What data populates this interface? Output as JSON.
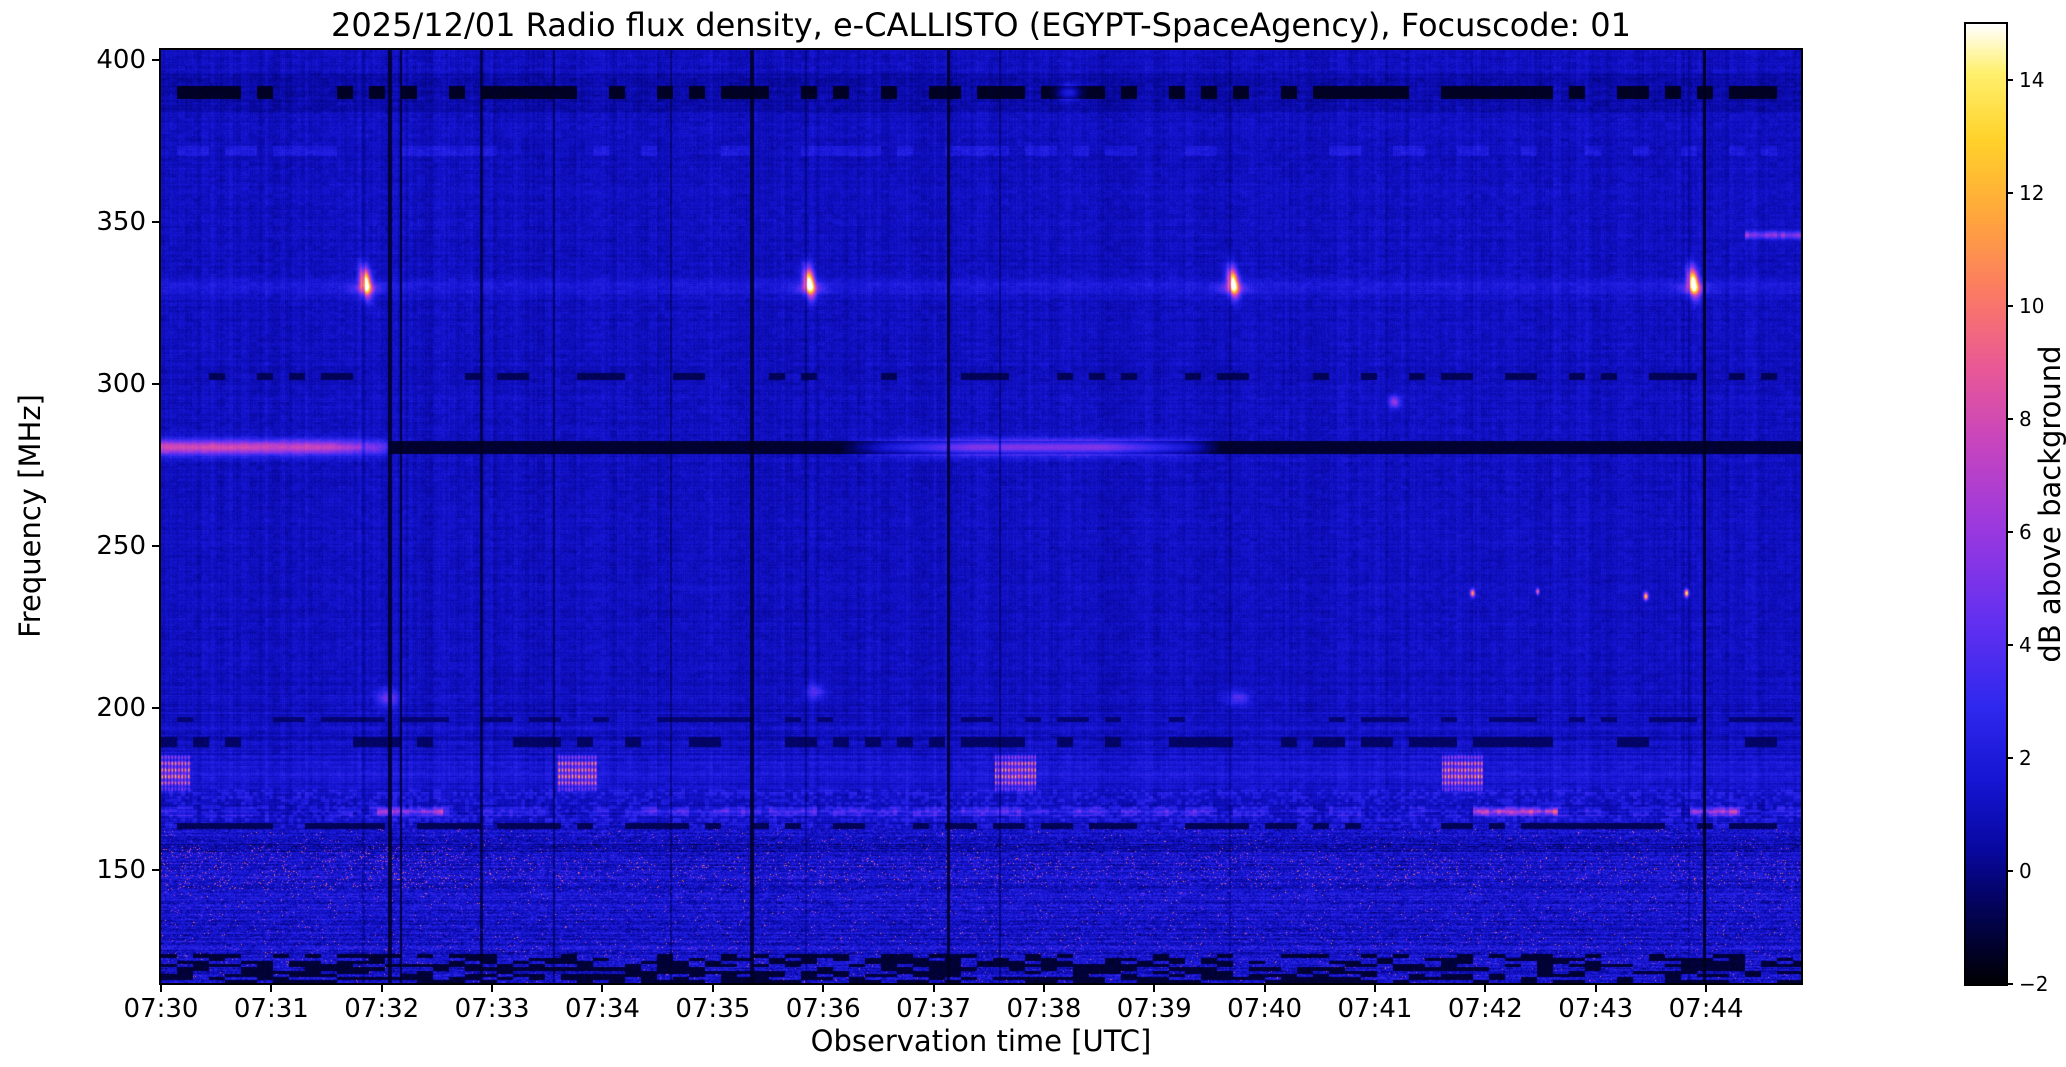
{
  "chart_data": {
    "type": "heatmap",
    "title": "2025/12/01  Radio flux density, e-CALLISTO (EGYPT-SpaceAgency), Focuscode: 01",
    "date": "2025/12/01",
    "station": "EGYPT-SpaceAgency",
    "focuscode": "01",
    "xlabel": "Observation time [UTC]",
    "ylabel": "Frequency [MHz]",
    "colorbar_label": "dB above background",
    "x_tick_labels": [
      "07:30",
      "07:31",
      "07:32",
      "07:33",
      "07:34",
      "07:35",
      "07:36",
      "07:37",
      "07:38",
      "07:39",
      "07:40",
      "07:41",
      "07:42",
      "07:43",
      "07:44"
    ],
    "x_range_minutes_after_0730": [
      0,
      14.86
    ],
    "y_tick_values": [
      400,
      350,
      300,
      250,
      200,
      150
    ],
    "y_range_mhz": [
      115,
      403
    ],
    "colorbar_tick_values": [
      14,
      12,
      10,
      8,
      6,
      4,
      2,
      0,
      -2
    ],
    "colorbar_range_db": [
      -2,
      15
    ],
    "background": {
      "typical_db": 1.0,
      "noisy_band_below_mhz": 163
    },
    "colormap_stops": [
      {
        "u": 0.0,
        "c": "#000004"
      },
      {
        "u": 0.08,
        "c": "#03035a"
      },
      {
        "u": 0.14,
        "c": "#0808a0"
      },
      {
        "u": 0.21,
        "c": "#1515d2"
      },
      {
        "u": 0.29,
        "c": "#3028ee"
      },
      {
        "u": 0.38,
        "c": "#6430f0"
      },
      {
        "u": 0.47,
        "c": "#9838e0"
      },
      {
        "u": 0.56,
        "c": "#c544c0"
      },
      {
        "u": 0.64,
        "c": "#e85898"
      },
      {
        "u": 0.72,
        "c": "#fb7a64"
      },
      {
        "u": 0.8,
        "c": "#ffa63c"
      },
      {
        "u": 0.88,
        "c": "#ffd22a"
      },
      {
        "u": 0.95,
        "c": "#fff06e"
      },
      {
        "u": 1.0,
        "c": "#ffffff"
      }
    ],
    "features": [
      {
        "type": "brightrow",
        "f": 330,
        "hw": 2.6,
        "amt": 0.9
      },
      {
        "type": "brightrow",
        "f": 180,
        "hw": 4.5,
        "amt": 0.7
      },
      {
        "type": "dashbright",
        "f": 372,
        "hw": 1.6,
        "amt": 0.9,
        "duty": 0.45
      },
      {
        "type": "dashbright",
        "f": 168,
        "hw": 1.4,
        "amt": 1.0,
        "duty": 0.5
      },
      {
        "type": "dashrow",
        "f": 390,
        "hw": 1.9,
        "depth": -1.7,
        "duty": 0.55
      },
      {
        "type": "dashrow",
        "f": 302.5,
        "hw": 1.1,
        "depth": -0.9,
        "duty": 0.38
      },
      {
        "type": "dashrow",
        "f": 189.5,
        "hw": 1.6,
        "depth": -0.7,
        "duty": 0.42
      },
      {
        "type": "dashrow",
        "f": 196.5,
        "hw": 0.9,
        "depth": -0.5,
        "duty": 0.45
      },
      {
        "type": "dashrow",
        "f": 163.5,
        "hw": 0.9,
        "depth": -0.9,
        "duty": 0.6
      },
      {
        "type": "darkline",
        "f": 280.5,
        "hw": 2.1,
        "t0": 2.05,
        "t1": 14.86,
        "depth": -1.55
      },
      {
        "type": "hline",
        "f": 280.5,
        "sigma": 1.6,
        "pts": [
          [
            0,
            7
          ],
          [
            1.5,
            6.3
          ],
          [
            2.02,
            3.2
          ],
          [
            2.1,
            0
          ]
        ]
      },
      {
        "type": "hline",
        "f": 280.5,
        "sigma": 1.6,
        "pts": [
          [
            6.15,
            0
          ],
          [
            6.55,
            3
          ],
          [
            7.35,
            6.6
          ],
          [
            8.55,
            6.6
          ],
          [
            9.3,
            3
          ],
          [
            9.6,
            0
          ]
        ]
      },
      {
        "type": "burst",
        "t": 1.85,
        "f": 331.5,
        "st": 0.05,
        "sf": 4.2,
        "slope": -25,
        "peak": 14.5,
        "fspan": [
          320,
          343
        ]
      },
      {
        "type": "burst",
        "t": 5.87,
        "f": 331.5,
        "st": 0.05,
        "sf": 4.2,
        "slope": -25,
        "peak": 14.5,
        "fspan": [
          320,
          343
        ]
      },
      {
        "type": "burst",
        "t": 9.71,
        "f": 331.5,
        "st": 0.05,
        "sf": 4.2,
        "slope": -25,
        "peak": 14.0,
        "fspan": [
          320,
          343
        ]
      },
      {
        "type": "burst",
        "t": 13.88,
        "f": 331.5,
        "st": 0.05,
        "sf": 4.2,
        "slope": -25,
        "peak": 14.5,
        "fspan": [
          320,
          343
        ]
      },
      {
        "type": "comb",
        "t0": 0,
        "t1": 0.27,
        "f0": 173.5,
        "f1": 186.5,
        "peak": 12
      },
      {
        "type": "comb",
        "t0": 3.58,
        "t1": 3.95,
        "f0": 173.5,
        "f1": 186.5,
        "peak": 12
      },
      {
        "type": "comb",
        "t0": 7.55,
        "t1": 7.92,
        "f0": 173.5,
        "f1": 186.5,
        "peak": 12
      },
      {
        "type": "comb",
        "t0": 11.6,
        "t1": 11.97,
        "f0": 173.5,
        "f1": 186.5,
        "peak": 12
      },
      {
        "type": "rowseg",
        "f": 168,
        "sigma": 1.1,
        "t0": 1.95,
        "t1": 2.55,
        "peak": 5,
        "dash": true
      },
      {
        "type": "rowseg",
        "f": 168,
        "sigma": 1.1,
        "t0": 4.2,
        "t1": 9.5,
        "peak": 1.6,
        "dash": true
      },
      {
        "type": "rowseg",
        "f": 168,
        "sigma": 1.1,
        "t0": 11.88,
        "t1": 12.65,
        "peak": 6.5,
        "dash": true
      },
      {
        "type": "rowseg",
        "f": 168,
        "sigma": 1.1,
        "t0": 13.85,
        "t1": 14.3,
        "peak": 5.5,
        "dash": true
      },
      {
        "type": "rowseg",
        "f": 346,
        "sigma": 1.2,
        "t0": 14.35,
        "t1": 14.86,
        "peak": 5,
        "dash": true
      },
      {
        "type": "blob",
        "t": 11.17,
        "f": 294.5,
        "st": 0.05,
        "sf": 1.8,
        "peak": 5
      },
      {
        "type": "blob",
        "t": 2.05,
        "f": 203,
        "st": 0.09,
        "sf": 3,
        "peak": 3.5
      },
      {
        "type": "blob",
        "t": 5.92,
        "f": 205,
        "st": 0.08,
        "sf": 2.2,
        "peak": 3
      },
      {
        "type": "blob",
        "t": 9.75,
        "f": 203,
        "st": 0.1,
        "sf": 2.5,
        "peak": 2.5
      },
      {
        "type": "blob",
        "t": 8.22,
        "f": 390,
        "st": 0.1,
        "sf": 2.2,
        "peak": 3.5
      },
      {
        "type": "blob",
        "t": 11.88,
        "f": 235.5,
        "st": 0.02,
        "sf": 1.1,
        "peak": 11
      },
      {
        "type": "blob",
        "t": 13.45,
        "f": 234.5,
        "st": 0.02,
        "sf": 1.1,
        "peak": 12
      },
      {
        "type": "blob",
        "t": 13.82,
        "f": 235.5,
        "st": 0.02,
        "sf": 1.1,
        "peak": 13
      },
      {
        "type": "blob",
        "t": 12.47,
        "f": 236,
        "st": 0.015,
        "sf": 0.9,
        "peak": 9
      },
      {
        "type": "vline",
        "t": 1.83,
        "w": 0.012,
        "s": 0.3
      },
      {
        "type": "vline",
        "t": 2.07,
        "w": 0.016,
        "s": 0.85
      },
      {
        "type": "vline",
        "t": 2.17,
        "w": 0.013,
        "s": 0.8
      },
      {
        "type": "vline",
        "t": 2.9,
        "w": 0.012,
        "s": 0.7
      },
      {
        "type": "vline",
        "t": 3.56,
        "w": 0.01,
        "s": 0.55
      },
      {
        "type": "vline",
        "t": 4.62,
        "w": 0.01,
        "s": 0.45
      },
      {
        "type": "vline",
        "t": 5.35,
        "w": 0.015,
        "s": 0.85
      },
      {
        "type": "vline",
        "t": 5.84,
        "w": 0.01,
        "s": 0.3
      },
      {
        "type": "vline",
        "t": 7.13,
        "w": 0.016,
        "s": 0.85
      },
      {
        "type": "vline",
        "t": 7.6,
        "w": 0.01,
        "s": 0.5
      },
      {
        "type": "vline",
        "t": 9.68,
        "w": 0.01,
        "s": 0.3
      },
      {
        "type": "vline",
        "t": 13.84,
        "w": 0.01,
        "s": 0.3
      },
      {
        "type": "vline",
        "t": 13.98,
        "w": 0.017,
        "s": 0.9
      }
    ]
  }
}
